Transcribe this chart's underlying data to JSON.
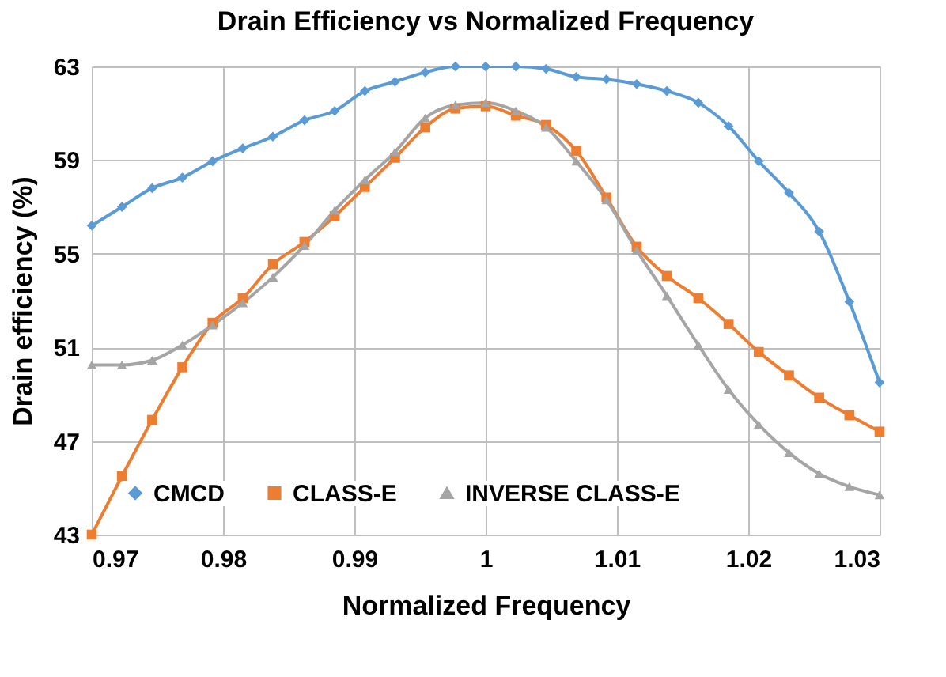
{
  "chart_data": {
    "type": "line",
    "title": "Drain Efficiency vs Normalized Frequency",
    "xlabel": "Normalized Frequency",
    "ylabel": "Drain efficiency (%)",
    "x": [
      0.97,
      0.9723,
      0.9746,
      0.9769,
      0.9792,
      0.9815,
      0.9838,
      0.9862,
      0.9885,
      0.9908,
      0.9931,
      0.9954,
      0.9977,
      1.0,
      1.0023,
      1.0046,
      1.0069,
      1.0092,
      1.0115,
      1.0138,
      1.0162,
      1.0185,
      1.0208,
      1.0231,
      1.0254,
      1.0277,
      1.03
    ],
    "series": [
      {
        "name": "CMCD",
        "color": "#5b9bd5",
        "marker": "diamond",
        "values": [
          56.2,
          57.0,
          57.8,
          58.25,
          58.95,
          59.5,
          60.0,
          60.7,
          61.1,
          61.95,
          62.35,
          62.75,
          63.0,
          63.0,
          63.0,
          62.9,
          62.55,
          62.45,
          62.25,
          61.95,
          61.45,
          60.45,
          58.95,
          57.6,
          55.95,
          52.95,
          49.5
        ]
      },
      {
        "name": "CLASS-E",
        "color": "#ed7d31",
        "marker": "square",
        "values": [
          43.0,
          45.5,
          47.9,
          50.15,
          52.05,
          53.1,
          54.55,
          55.5,
          56.6,
          57.85,
          59.1,
          60.4,
          61.2,
          61.3,
          60.9,
          60.5,
          59.4,
          57.4,
          55.3,
          54.05,
          53.1,
          52.0,
          50.8,
          49.8,
          48.85,
          48.1,
          47.4
        ]
      },
      {
        "name": "INVERSE CLASS-E",
        "color": "#a5a5a5",
        "marker": "triangle",
        "values": [
          50.25,
          50.25,
          50.45,
          51.1,
          51.95,
          52.9,
          54.0,
          55.35,
          56.85,
          58.15,
          59.35,
          60.8,
          61.35,
          61.45,
          61.1,
          60.4,
          58.95,
          57.3,
          55.15,
          53.2,
          51.1,
          49.2,
          47.7,
          46.5,
          45.6,
          45.05,
          44.7
        ]
      }
    ],
    "xlim": [
      0.97,
      1.03
    ],
    "xticks": [
      0.97,
      0.98,
      0.99,
      1,
      1.01,
      1.02,
      1.03
    ],
    "ylim": [
      43,
      63
    ],
    "yticks": [
      43,
      47,
      51,
      55,
      59,
      63
    ],
    "grid": true,
    "legend": "bottom"
  }
}
